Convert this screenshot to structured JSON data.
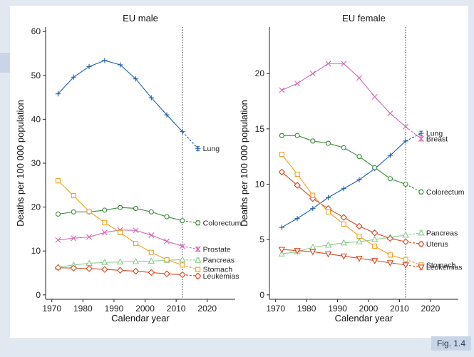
{
  "figure_label": "Fig. 1.4",
  "colors": {
    "Lung": "#1f5fa8",
    "Colorectum": "#3a8a3a",
    "Prostate": "#d966b5",
    "Breast": "#d966b5",
    "Pancreas": "#8ccc8c",
    "Stomach": "#f0a020",
    "Leukemias": "#d94820",
    "Uterus": "#d94820"
  },
  "chart_data": [
    {
      "type": "line",
      "title": "EU male",
      "xlabel": "Calendar year",
      "ylabel": "Deaths per 100 000 population",
      "xlim": [
        1968,
        2029
      ],
      "ylim": [
        -1,
        61
      ],
      "xticks": [
        1970,
        1980,
        1990,
        2000,
        2010,
        2020
      ],
      "yticks": [
        0,
        10,
        20,
        30,
        40,
        50,
        60
      ],
      "reference_year": 2012,
      "x": [
        1972,
        1977,
        1982,
        1987,
        1992,
        1997,
        2002,
        2007,
        2012
      ],
      "prediction_year": 2017,
      "series": [
        {
          "name": "Lung",
          "marker": "plus",
          "values": [
            45.8,
            49.6,
            52.0,
            53.4,
            52.4,
            49.2,
            44.9,
            41.0,
            37.2
          ],
          "prediction": 33.3,
          "pred_label_offset": 0
        },
        {
          "name": "Colorectum",
          "marker": "circle",
          "values": [
            18.4,
            18.9,
            18.9,
            19.3,
            19.9,
            19.7,
            18.9,
            17.8,
            16.9
          ],
          "prediction": 16.4,
          "pred_label_offset": 0
        },
        {
          "name": "Prostate",
          "marker": "x",
          "values": [
            12.5,
            12.9,
            13.2,
            14.2,
            14.8,
            14.7,
            13.6,
            12.2,
            11.1
          ],
          "prediction": 10.4,
          "pred_label_offset": 0
        },
        {
          "name": "Pancreas",
          "marker": "triangle-up",
          "values": [
            6.3,
            6.8,
            7.2,
            7.4,
            7.5,
            7.6,
            7.7,
            7.9,
            8.0
          ],
          "prediction": 7.9,
          "pred_label_offset": 0
        },
        {
          "name": "Stomach",
          "marker": "square",
          "values": [
            26.0,
            22.6,
            19.0,
            16.5,
            14.2,
            11.7,
            9.7,
            8.0,
            6.8
          ],
          "prediction": 5.8,
          "pred_label_offset": 0
        },
        {
          "name": "Leukemias",
          "marker": "diamond",
          "values": [
            6.2,
            6.1,
            6.0,
            5.8,
            5.6,
            5.4,
            5.1,
            4.8,
            4.6
          ],
          "prediction": 4.3,
          "pred_label_offset": 0
        }
      ]
    },
    {
      "type": "line",
      "title": "EU female",
      "xlabel": "Calendar year",
      "ylabel": "Deaths per 100 000 population",
      "xlim": [
        1968,
        2029
      ],
      "ylim": [
        -0.4,
        24.2
      ],
      "xticks": [
        1970,
        1980,
        1990,
        2000,
        2010,
        2020
      ],
      "yticks": [
        0,
        5,
        10,
        15,
        20
      ],
      "reference_year": 2012,
      "x": [
        1972,
        1977,
        1982,
        1987,
        1992,
        1997,
        2002,
        2007,
        2012
      ],
      "prediction_year": 2017,
      "series": [
        {
          "name": "Lung",
          "marker": "plus",
          "values": [
            6.1,
            6.9,
            7.8,
            8.8,
            9.6,
            10.4,
            11.4,
            12.6,
            13.9
          ],
          "prediction": 14.6,
          "pred_label_offset": 0
        },
        {
          "name": "Breast",
          "marker": "x",
          "values": [
            18.5,
            19.1,
            20.0,
            20.9,
            20.9,
            19.6,
            17.9,
            16.4,
            15.2
          ],
          "prediction": 14.1,
          "pred_label_offset": 0
        },
        {
          "name": "Colorectum",
          "marker": "circle",
          "values": [
            14.4,
            14.4,
            13.9,
            13.7,
            13.3,
            12.5,
            11.5,
            10.5,
            10.0
          ],
          "prediction": 9.3,
          "pred_label_offset": 0
        },
        {
          "name": "Pancreas",
          "marker": "triangle-up",
          "values": [
            3.7,
            3.9,
            4.3,
            4.5,
            4.7,
            4.8,
            5.0,
            5.2,
            5.4
          ],
          "prediction": 5.6,
          "pred_label_offset": 0
        },
        {
          "name": "Uterus",
          "marker": "diamond",
          "values": [
            11.1,
            9.9,
            8.7,
            7.8,
            7.0,
            6.2,
            5.6,
            5.1,
            4.8
          ],
          "prediction": 4.6,
          "pred_label_offset": 0
        },
        {
          "name": "Stomach",
          "marker": "square",
          "values": [
            12.7,
            10.9,
            9.0,
            7.5,
            6.4,
            5.3,
            4.4,
            3.6,
            3.2
          ],
          "prediction": 2.7,
          "pred_label_offset": 0
        },
        {
          "name": "Leukemias",
          "marker": "triangle-down",
          "values": [
            4.1,
            4.0,
            3.9,
            3.7,
            3.5,
            3.3,
            3.1,
            2.9,
            2.7
          ],
          "prediction": 2.5,
          "pred_label_offset": 0
        }
      ]
    }
  ]
}
